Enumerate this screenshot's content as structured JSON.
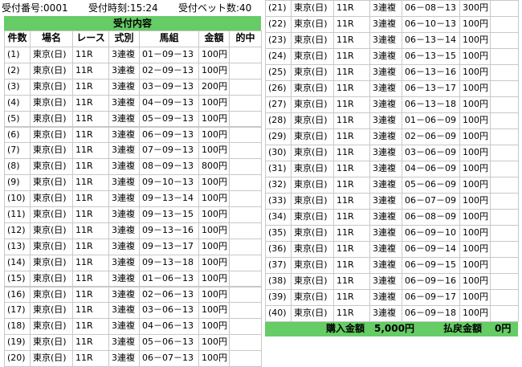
{
  "header": {
    "receipt_no": "受付番号:0001",
    "time": "受付時刻:15:24",
    "bet_count": "受付ベット数:40"
  },
  "title": "受付内容",
  "columns": [
    "件数",
    "場名",
    "レース",
    "式別",
    "馬組",
    "金額",
    "的中"
  ],
  "rows": [
    [
      "(1)",
      "東京(日)",
      "11R",
      "3連複",
      "01－09－13",
      "100円"
    ],
    [
      "(2)",
      "東京(日)",
      "11R",
      "3連複",
      "02－09－13",
      "100円"
    ],
    [
      "(3)",
      "東京(日)",
      "11R",
      "3連複",
      "03－09－13",
      "200円"
    ],
    [
      "(4)",
      "東京(日)",
      "11R",
      "3連複",
      "04－09－13",
      "100円"
    ],
    [
      "(5)",
      "東京(日)",
      "11R",
      "3連複",
      "05－09－13",
      "100円"
    ],
    [
      "(6)",
      "東京(日)",
      "11R",
      "3連複",
      "06－09－13",
      "100円"
    ],
    [
      "(7)",
      "東京(日)",
      "11R",
      "3連複",
      "07－09－13",
      "100円"
    ],
    [
      "(8)",
      "東京(日)",
      "11R",
      "3連複",
      "08－09－13",
      "800円"
    ],
    [
      "(9)",
      "東京(日)",
      "11R",
      "3連複",
      "09－10－13",
      "100円"
    ],
    [
      "(10)",
      "東京(日)",
      "11R",
      "3連複",
      "09－13－14",
      "100円"
    ],
    [
      "(11)",
      "東京(日)",
      "11R",
      "3連複",
      "09－13－15",
      "100円"
    ],
    [
      "(12)",
      "東京(日)",
      "11R",
      "3連複",
      "09－13－16",
      "100円"
    ],
    [
      "(13)",
      "東京(日)",
      "11R",
      "3連複",
      "09－13－17",
      "100円"
    ],
    [
      "(14)",
      "東京(日)",
      "11R",
      "3連複",
      "09－13－18",
      "100円"
    ],
    [
      "(15)",
      "東京(日)",
      "11R",
      "3連複",
      "01－06－13",
      "100円"
    ],
    [
      "(16)",
      "東京(日)",
      "11R",
      "3連複",
      "02－06－13",
      "100円"
    ],
    [
      "(17)",
      "東京(日)",
      "11R",
      "3連複",
      "03－06－13",
      "100円"
    ],
    [
      "(18)",
      "東京(日)",
      "11R",
      "3連複",
      "04－06－13",
      "100円"
    ],
    [
      "(19)",
      "東京(日)",
      "11R",
      "3連複",
      "05－06－13",
      "100円"
    ],
    [
      "(20)",
      "東京(日)",
      "11R",
      "3連複",
      "06－07－13",
      "100円"
    ],
    [
      "(21)",
      "東京(日)",
      "11R",
      "3連複",
      "06－08－13",
      "300円"
    ],
    [
      "(22)",
      "東京(日)",
      "11R",
      "3連複",
      "06－10－13",
      "100円"
    ],
    [
      "(23)",
      "東京(日)",
      "11R",
      "3連複",
      "06－13－14",
      "100円"
    ],
    [
      "(24)",
      "東京(日)",
      "11R",
      "3連複",
      "06－13－15",
      "100円"
    ],
    [
      "(25)",
      "東京(日)",
      "11R",
      "3連複",
      "06－13－16",
      "100円"
    ],
    [
      "(26)",
      "東京(日)",
      "11R",
      "3連複",
      "06－13－17",
      "100円"
    ],
    [
      "(27)",
      "東京(日)",
      "11R",
      "3連複",
      "06－13－18",
      "100円"
    ],
    [
      "(28)",
      "東京(日)",
      "11R",
      "3連複",
      "01－06－09",
      "100円"
    ],
    [
      "(29)",
      "東京(日)",
      "11R",
      "3連複",
      "02－06－09",
      "100円"
    ],
    [
      "(30)",
      "東京(日)",
      "11R",
      "3連複",
      "03－06－09",
      "100円"
    ],
    [
      "(31)",
      "東京(日)",
      "11R",
      "3連複",
      "04－06－09",
      "100円"
    ],
    [
      "(32)",
      "東京(日)",
      "11R",
      "3連複",
      "05－06－09",
      "100円"
    ],
    [
      "(33)",
      "東京(日)",
      "11R",
      "3連複",
      "06－07－09",
      "100円"
    ],
    [
      "(34)",
      "東京(日)",
      "11R",
      "3連複",
      "06－08－09",
      "100円"
    ],
    [
      "(35)",
      "東京(日)",
      "11R",
      "3連複",
      "06－09－10",
      "100円"
    ],
    [
      "(36)",
      "東京(日)",
      "11R",
      "3連複",
      "06－09－14",
      "100円"
    ],
    [
      "(37)",
      "東京(日)",
      "11R",
      "3連複",
      "06－09－15",
      "100円"
    ],
    [
      "(38)",
      "東京(日)",
      "11R",
      "3連複",
      "06－09－16",
      "100円"
    ],
    [
      "(39)",
      "東京(日)",
      "11R",
      "3連複",
      "06－09－17",
      "100円"
    ],
    [
      "(40)",
      "東京(日)",
      "11R",
      "3連複",
      "06－09－18",
      "100円"
    ]
  ],
  "footer": {
    "purchase_label": "購入金額",
    "purchase_amount": "5,000円",
    "payout_label": "払戻金額",
    "payout_amount": "0円"
  }
}
